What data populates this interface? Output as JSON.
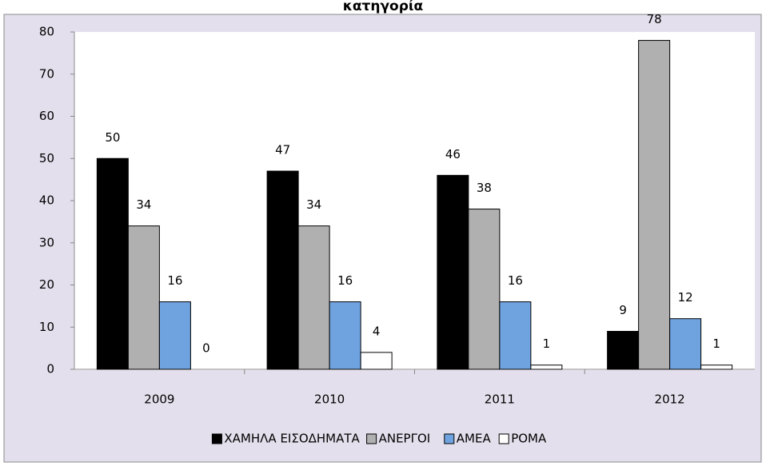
{
  "chart_data": {
    "type": "bar",
    "title": "κατηγορία",
    "categories": [
      "2009",
      "2010",
      "2011",
      "2012"
    ],
    "series": [
      {
        "name": "ΧΑΜΗΛΑ ΕΙΣΟΔΗΜΑΤΑ",
        "color": "#000000",
        "values": [
          50,
          47,
          46,
          9
        ]
      },
      {
        "name": "ΑΝΕΡΓΟΙ",
        "color": "#b0b0b0",
        "values": [
          34,
          34,
          38,
          78
        ]
      },
      {
        "name": "ΑΜΕΑ",
        "color": "#6fa3e0",
        "values": [
          16,
          16,
          16,
          12
        ]
      },
      {
        "name": "ΡΟΜΑ",
        "color": "#ffffff",
        "values": [
          0,
          4,
          1,
          1
        ]
      }
    ],
    "ylim": [
      0,
      80
    ],
    "yticks": [
      0,
      10,
      20,
      30,
      40,
      50,
      60,
      70,
      80
    ],
    "legend": "bottom"
  }
}
